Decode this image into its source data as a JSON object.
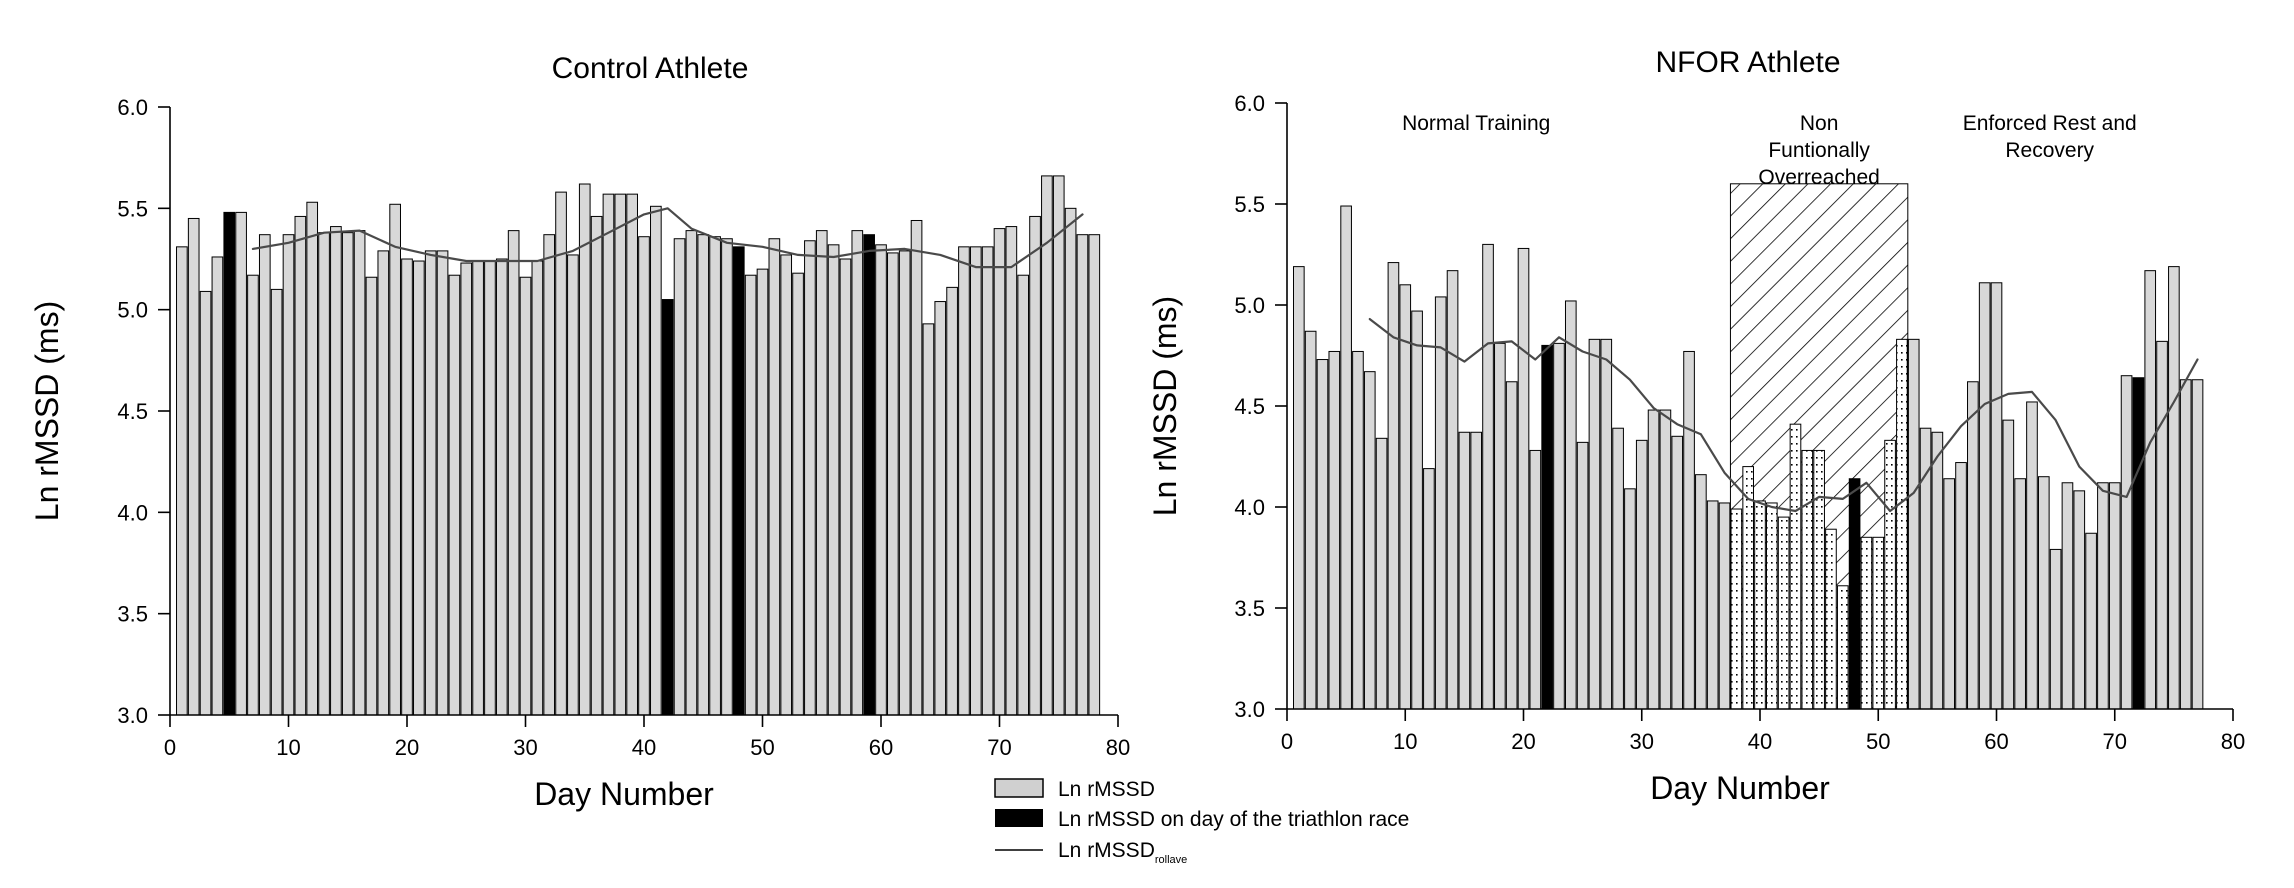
{
  "chart_data": [
    {
      "type": "bar",
      "title": "Control Athlete",
      "xlabel": "Day Number",
      "ylabel": "Ln rMSSD (ms)",
      "xlim": [
        0,
        80
      ],
      "ylim": [
        3.0,
        6.0
      ],
      "xticks": [
        "0",
        "10",
        "20",
        "30",
        "40",
        "50",
        "60",
        "70",
        "80"
      ],
      "yticks": [
        "3.0",
        "3.5",
        "4.0",
        "4.5",
        "5.0",
        "5.5",
        "6.0"
      ],
      "grid": false,
      "race_days": [
        5,
        42,
        48,
        59
      ],
      "series": [
        {
          "name": "Ln rMSSD",
          "x": [
            1,
            2,
            3,
            4,
            5,
            6,
            7,
            8,
            9,
            10,
            11,
            12,
            13,
            14,
            15,
            16,
            17,
            18,
            19,
            20,
            21,
            22,
            23,
            24,
            25,
            26,
            27,
            28,
            29,
            30,
            31,
            32,
            33,
            34,
            35,
            36,
            37,
            38,
            39,
            40,
            41,
            42,
            43,
            44,
            45,
            46,
            47,
            48,
            49,
            50,
            51,
            52,
            53,
            54,
            55,
            56,
            57,
            58,
            59,
            60,
            61,
            62,
            63,
            64,
            65,
            66,
            67,
            68,
            69,
            70,
            71,
            72,
            73,
            74,
            75,
            76,
            77,
            78
          ],
          "values": [
            5.31,
            5.45,
            5.09,
            5.26,
            5.48,
            5.48,
            5.17,
            5.37,
            5.1,
            5.37,
            5.46,
            5.53,
            5.38,
            5.41,
            5.38,
            5.39,
            5.16,
            5.29,
            5.52,
            5.25,
            5.24,
            5.29,
            5.29,
            5.17,
            5.23,
            5.24,
            5.24,
            5.25,
            5.39,
            5.16,
            5.24,
            5.37,
            5.58,
            5.27,
            5.62,
            5.46,
            5.57,
            5.57,
            5.57,
            5.36,
            5.51,
            5.05,
            5.35,
            5.39,
            5.37,
            5.36,
            5.35,
            5.31,
            5.17,
            5.2,
            5.35,
            5.27,
            5.18,
            5.34,
            5.39,
            5.32,
            5.25,
            5.39,
            5.37,
            5.32,
            5.28,
            5.29,
            5.44,
            4.93,
            5.04,
            5.11,
            5.31,
            5.31,
            5.31,
            5.4,
            5.41,
            5.17,
            5.46,
            5.66,
            5.66,
            5.5,
            5.37,
            5.37
          ]
        },
        {
          "name": "Ln rMSSD rollave",
          "x": [
            7,
            10,
            13,
            16,
            19,
            22,
            25,
            28,
            31,
            34,
            37,
            40,
            42,
            44,
            47,
            50,
            53,
            56,
            59,
            62,
            65,
            68,
            71,
            74,
            77
          ],
          "values": [
            5.3,
            5.33,
            5.38,
            5.39,
            5.31,
            5.27,
            5.24,
            5.24,
            5.24,
            5.29,
            5.38,
            5.47,
            5.5,
            5.4,
            5.33,
            5.31,
            5.27,
            5.26,
            5.29,
            5.3,
            5.27,
            5.21,
            5.21,
            5.33,
            5.47
          ]
        }
      ]
    },
    {
      "type": "bar",
      "title": "NFOR Athlete",
      "xlabel": "Day Number",
      "ylabel": "Ln rMSSD (ms)",
      "xlim": [
        0,
        80
      ],
      "ylim": [
        3.0,
        6.0
      ],
      "xticks": [
        "0",
        "10",
        "20",
        "30",
        "40",
        "50",
        "60",
        "70",
        "80"
      ],
      "yticks": [
        "3.0",
        "3.5",
        "4.0",
        "4.5",
        "5.0",
        "5.5",
        "6.0"
      ],
      "grid": false,
      "race_days": [
        22,
        48,
        72
      ],
      "phases": [
        {
          "label": [
            "Normal Training"
          ],
          "x": 16
        },
        {
          "label": [
            "Non",
            "Funtionally",
            "Overreached"
          ],
          "x": 45
        },
        {
          "label": [
            "Enforced Rest and",
            "Recovery"
          ],
          "x": 64.5
        }
      ],
      "overreached_range": [
        37.5,
        52.5
      ],
      "series": [
        {
          "name": "Ln rMSSD",
          "x": [
            1,
            2,
            3,
            4,
            5,
            6,
            7,
            8,
            9,
            10,
            11,
            12,
            13,
            14,
            15,
            16,
            17,
            18,
            19,
            20,
            21,
            22,
            23,
            24,
            25,
            26,
            27,
            28,
            29,
            30,
            31,
            32,
            33,
            34,
            35,
            36,
            37,
            38,
            39,
            40,
            41,
            42,
            43,
            44,
            45,
            46,
            47,
            48,
            49,
            50,
            51,
            52,
            53,
            54,
            55,
            56,
            57,
            58,
            59,
            60,
            61,
            62,
            63,
            64,
            65,
            66,
            67,
            68,
            69,
            70,
            71,
            72,
            73,
            74,
            75,
            76,
            77
          ],
          "values": [
            5.19,
            4.87,
            4.73,
            4.77,
            5.49,
            4.77,
            4.67,
            4.34,
            5.21,
            5.1,
            4.97,
            4.19,
            5.04,
            5.17,
            4.37,
            4.37,
            5.3,
            4.81,
            4.62,
            5.28,
            4.28,
            4.8,
            4.81,
            5.02,
            4.32,
            4.83,
            4.83,
            4.39,
            4.09,
            4.33,
            4.48,
            4.48,
            4.35,
            4.77,
            4.16,
            4.03,
            4.02,
            3.99,
            4.2,
            4.03,
            4.02,
            3.95,
            4.41,
            4.28,
            4.28,
            3.89,
            3.61,
            4.14,
            3.85,
            3.85,
            4.33,
            4.83,
            4.83,
            4.39,
            4.37,
            4.14,
            4.22,
            4.62,
            5.11,
            5.11,
            4.43,
            4.14,
            4.52,
            4.15,
            3.79,
            4.12,
            4.08,
            3.87,
            4.12,
            4.12,
            4.65,
            4.64,
            5.17,
            4.82,
            5.19,
            4.63,
            4.63
          ]
        },
        {
          "name": "Ln rMSSD rollave",
          "x": [
            7,
            9,
            11,
            13,
            15,
            17,
            19,
            21,
            23,
            25,
            27,
            29,
            31,
            33,
            35,
            37,
            39,
            41,
            43,
            45,
            47,
            49,
            51,
            53,
            55,
            57,
            59,
            61,
            63,
            65,
            67,
            69,
            71,
            73,
            75,
            77
          ],
          "values": [
            4.93,
            4.84,
            4.8,
            4.79,
            4.72,
            4.81,
            4.82,
            4.73,
            4.84,
            4.77,
            4.73,
            4.63,
            4.49,
            4.41,
            4.36,
            4.17,
            4.04,
            4.0,
            3.98,
            4.05,
            4.04,
            4.12,
            3.98,
            4.07,
            4.25,
            4.4,
            4.51,
            4.56,
            4.57,
            4.43,
            4.2,
            4.08,
            4.05,
            4.32,
            4.52,
            4.73
          ]
        }
      ]
    }
  ],
  "legend": {
    "items": [
      {
        "label": "Ln rMSSD",
        "swatch": "gray"
      },
      {
        "label": "Ln rMSSD on day of the triathlon race",
        "swatch": "black"
      },
      {
        "label": "Ln rMSSD",
        "subscript": "rollave",
        "swatch": "line"
      }
    ]
  },
  "colors": {
    "bar_fill": "#d8d8d8",
    "race_fill": "#000000",
    "stroke": "#000000",
    "line": "#4a4a4a"
  }
}
